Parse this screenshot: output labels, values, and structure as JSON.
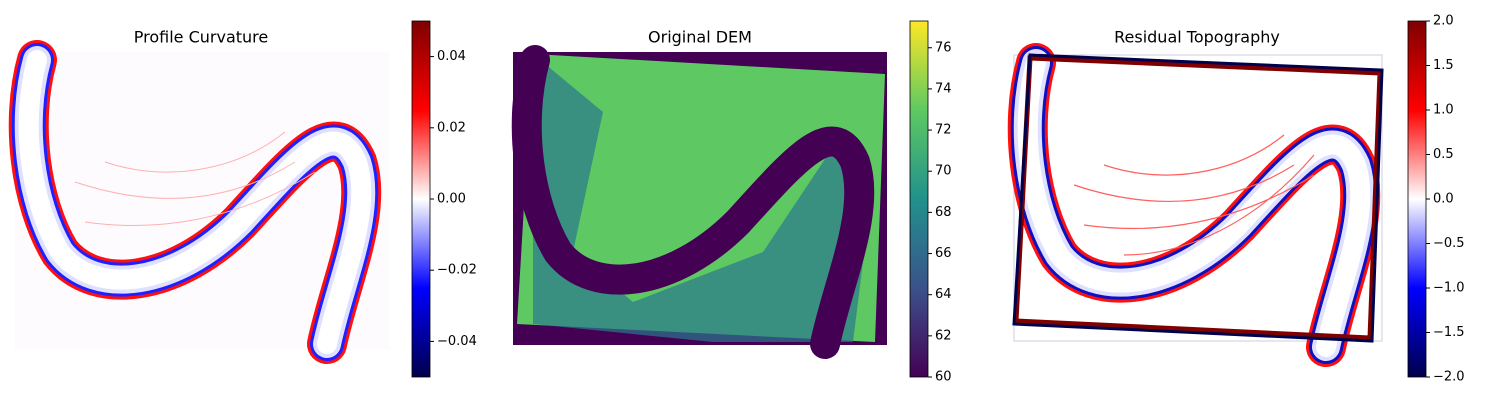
{
  "chart_data": [
    {
      "type": "image",
      "title": "Profile Curvature",
      "colormap": "seismic",
      "clim": [
        -0.05,
        0.05
      ],
      "cticks": [
        {
          "value": -0.04,
          "label": "−0.04"
        },
        {
          "value": -0.02,
          "label": "−0.02"
        },
        {
          "value": 0,
          "label": "0.00"
        },
        0.02,
        0.04
      ]
    },
    {
      "type": "image",
      "title": "Original DEM",
      "colormap": "viridis",
      "clim": [
        60,
        77.3
      ],
      "cticks": [
        60,
        62,
        64,
        66,
        68,
        70,
        72,
        74,
        76
      ]
    },
    {
      "type": "image",
      "title": "Residual Topography",
      "colormap": "seismic",
      "clim": [
        -2,
        2
      ],
      "cticks": [
        {
          "value": -2,
          "label": "−2.0"
        },
        {
          "value": -1.5,
          "label": "−1.5"
        },
        {
          "value": -1,
          "label": "−1.0"
        },
        {
          "value": -0.5,
          "label": "−0.5"
        },
        {
          "value": 0,
          "label": "0.0"
        },
        {
          "value": 0.5,
          "label": "0.5"
        },
        {
          "value": 1,
          "label": "1.0"
        },
        {
          "value": 1.5,
          "label": "1.5"
        },
        {
          "value": 2,
          "label": "2.0"
        }
      ]
    }
  ]
}
